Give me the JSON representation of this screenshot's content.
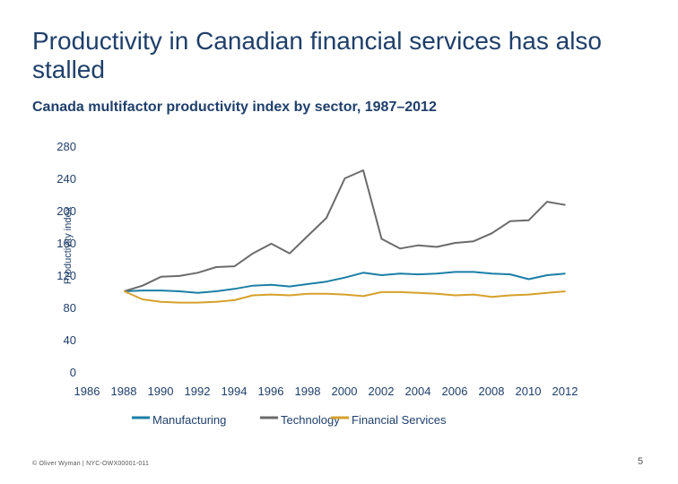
{
  "page": {
    "title": "Productivity in Canadian financial services has also stalled",
    "subtitle": "Canada multifactor productivity index by sector, 1987–2012",
    "footer": "© Oliver Wyman | NYC-OWX00001-011",
    "page_number": "5"
  },
  "chart_data": {
    "type": "line",
    "title": "",
    "xlabel": "",
    "ylabel": "Productivity index",
    "xlim": [
      1986,
      2012
    ],
    "ylim": [
      0,
      280
    ],
    "x_ticks": [
      1986,
      1988,
      1990,
      1992,
      1994,
      1996,
      1998,
      2000,
      2002,
      2004,
      2006,
      2008,
      2010,
      2012
    ],
    "y_ticks": [
      0,
      40,
      80,
      120,
      160,
      200,
      240,
      280
    ],
    "grid": false,
    "legend": "bottom",
    "x": [
      1987,
      1988,
      1989,
      1990,
      1991,
      1992,
      1993,
      1994,
      1995,
      1996,
      1997,
      1998,
      1999,
      2000,
      2001,
      2002,
      2003,
      2004,
      2005,
      2006,
      2007,
      2008,
      2009,
      2010,
      2011
    ],
    "series": [
      {
        "name": "Manufacturing",
        "color": "#1a7fa6",
        "values": [
          100,
          101,
          101,
          100,
          98,
          100,
          103,
          107,
          108,
          106,
          109,
          112,
          117,
          123,
          120,
          122,
          121,
          122,
          124,
          124,
          122,
          121,
          115,
          120,
          122
        ]
      },
      {
        "name": "Technology",
        "color": "#6b6b6b",
        "values": [
          100,
          107,
          118,
          119,
          123,
          130,
          131,
          147,
          159,
          147,
          169,
          191,
          240,
          250,
          165,
          153,
          157,
          155,
          160,
          162,
          172,
          187,
          188,
          211,
          207
        ]
      },
      {
        "name": "Financial Services",
        "color": "#d6a12b",
        "values": [
          100,
          90,
          87,
          86,
          86,
          87,
          89,
          95,
          96,
          95,
          97,
          97,
          96,
          94,
          99,
          99,
          98,
          97,
          95,
          96,
          93,
          95,
          96,
          98,
          100
        ]
      }
    ]
  }
}
